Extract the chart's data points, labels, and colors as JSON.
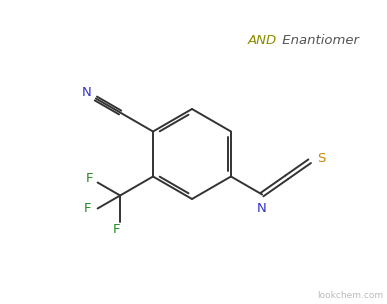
{
  "background_color": "#ffffff",
  "text_AND": "AND",
  "text_AND_color": "#8B8B00",
  "text_enantiomer": " Enantiomer",
  "text_enantiomer_color": "#555555",
  "watermark": "lookchem.com",
  "watermark_color": "#bbbbbb",
  "atom_N_color": "#3333cc",
  "atom_F_color": "#228B22",
  "atom_S_color": "#cc8800",
  "bond_color": "#333333",
  "label_fontsize": 9.5,
  "watermark_fontsize": 6.5
}
